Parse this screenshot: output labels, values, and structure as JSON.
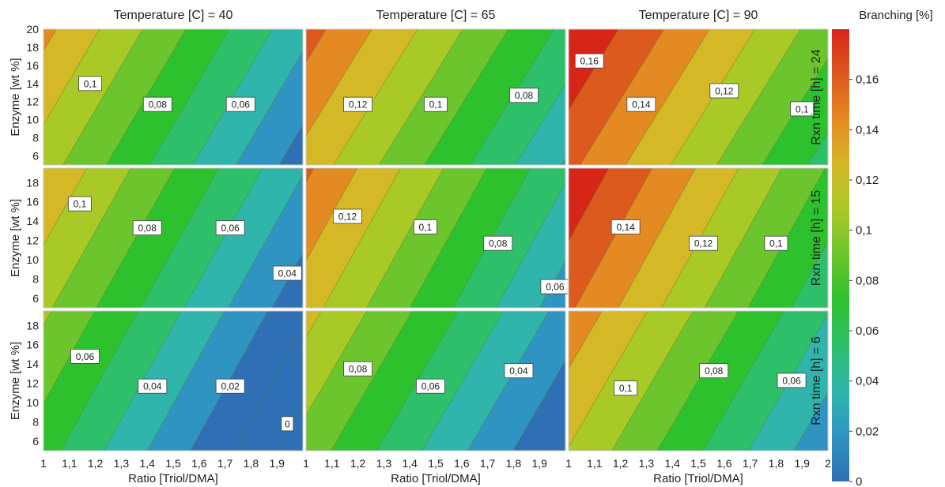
{
  "chart_data": {
    "type": "filled-contour",
    "column_titles": [
      "Temperature [C] = 40",
      "Temperature [C] = 65",
      "Temperature [C] = 90"
    ],
    "row_titles": [
      "Rxn time [h] = 24",
      "Rxn time [h] = 15",
      "Rxn time [h] = 6"
    ],
    "xlabel": "Ratio [Triol/DMA]",
    "ylabel": "Enzyme [wt %]",
    "xlim": [
      1,
      2
    ],
    "ylim": [
      5,
      20
    ],
    "x_ticks": [
      "1",
      "1,1",
      "1,2",
      "1,3",
      "1,4",
      "1,5",
      "1,6",
      "1,7",
      "1,8",
      "1,9",
      "2"
    ],
    "y_ticks_top_row": [
      "20",
      "18",
      "16",
      "14",
      "12",
      "10",
      "8",
      "6"
    ],
    "y_ticks": [
      "18",
      "16",
      "14",
      "12",
      "10",
      "8",
      "6"
    ],
    "contour_step": 0.02,
    "colorbar": {
      "title": "Branching [%]",
      "range": [
        0,
        0.18
      ],
      "ticks": [
        "0",
        "0,02",
        "0,04",
        "0,06",
        "0,08",
        "0,1",
        "0,12",
        "0,14",
        "0,16"
      ],
      "colors": [
        "#2f6fb5",
        "#2f94c1",
        "#2fb5ab",
        "#2ebf6b",
        "#2ec12e",
        "#6cc52c",
        "#a9c927",
        "#d4b826",
        "#e48a22",
        "#dc5a1e",
        "#d72518"
      ]
    },
    "panels": [
      {
        "row": 0,
        "col": 0,
        "b0": 0.128,
        "bx": -0.12,
        "by": 0.0026,
        "labels": [
          {
            "text": "0,1",
            "x": 1.18,
            "y": 14
          },
          {
            "text": "0,08",
            "x": 1.44,
            "y": 11.7
          },
          {
            "text": "0,06",
            "x": 1.76,
            "y": 11.7
          }
        ]
      },
      {
        "row": 0,
        "col": 1,
        "b0": 0.151,
        "bx": -0.114,
        "by": 0.0026,
        "labels": [
          {
            "text": "0,12",
            "x": 1.2,
            "y": 11.7
          },
          {
            "text": "0,1",
            "x": 1.5,
            "y": 11.7
          },
          {
            "text": "0,08",
            "x": 1.84,
            "y": 12.7
          }
        ]
      },
      {
        "row": 0,
        "col": 2,
        "b0": 0.184,
        "bx": -0.114,
        "by": 0.0026,
        "labels": [
          {
            "text": "0,16",
            "x": 1.08,
            "y": 16.5
          },
          {
            "text": "0,14",
            "x": 1.28,
            "y": 11.7
          },
          {
            "text": "0,12",
            "x": 1.6,
            "y": 13.2
          },
          {
            "text": "0,1",
            "x": 1.9,
            "y": 11.2
          }
        ]
      },
      {
        "row": 1,
        "col": 0,
        "b0": 0.123,
        "bx": -0.118,
        "by": 0.0026,
        "labels": [
          {
            "text": "0,1",
            "x": 1.14,
            "y": 15.8
          },
          {
            "text": "0,08",
            "x": 1.4,
            "y": 13.3
          },
          {
            "text": "0,06",
            "x": 1.72,
            "y": 13.3
          },
          {
            "text": "0,04",
            "x": 1.94,
            "y": 8.6
          }
        ]
      },
      {
        "row": 1,
        "col": 1,
        "b0": 0.147,
        "bx": -0.12,
        "by": 0.0026,
        "labels": [
          {
            "text": "0,12",
            "x": 1.16,
            "y": 14.5
          },
          {
            "text": "0,1",
            "x": 1.46,
            "y": 13.4
          },
          {
            "text": "0,08",
            "x": 1.74,
            "y": 11.7
          },
          {
            "text": "0,06",
            "x": 1.96,
            "y": 7.2
          }
        ]
      },
      {
        "row": 1,
        "col": 2,
        "b0": 0.182,
        "bx": -0.12,
        "by": 0.0026,
        "labels": [
          {
            "text": "0,14",
            "x": 1.22,
            "y": 13.4
          },
          {
            "text": "0,12",
            "x": 1.52,
            "y": 11.7
          },
          {
            "text": "0,1",
            "x": 1.8,
            "y": 11.7
          }
        ]
      },
      {
        "row": 2,
        "col": 0,
        "b0": 0.087,
        "bx": -0.12,
        "by": 0.0026,
        "labels": [
          {
            "text": "0,06",
            "x": 1.16,
            "y": 14.8
          },
          {
            "text": "0,04",
            "x": 1.42,
            "y": 11.7
          },
          {
            "text": "0,02",
            "x": 1.72,
            "y": 11.7
          },
          {
            "text": "0",
            "x": 1.94,
            "y": 7.8
          }
        ]
      },
      {
        "row": 2,
        "col": 1,
        "b0": 0.11,
        "bx": -0.114,
        "by": 0.0026,
        "labels": [
          {
            "text": "0,08",
            "x": 1.2,
            "y": 13.5
          },
          {
            "text": "0,06",
            "x": 1.48,
            "y": 11.7
          },
          {
            "text": "0,04",
            "x": 1.82,
            "y": 13.3
          }
        ]
      },
      {
        "row": 2,
        "col": 2,
        "b0": 0.138,
        "bx": -0.114,
        "by": 0.0026,
        "labels": [
          {
            "text": "0,1",
            "x": 1.22,
            "y": 11.5
          },
          {
            "text": "0,08",
            "x": 1.56,
            "y": 13.3
          },
          {
            "text": "0,06",
            "x": 1.86,
            "y": 12.3
          }
        ]
      }
    ]
  }
}
